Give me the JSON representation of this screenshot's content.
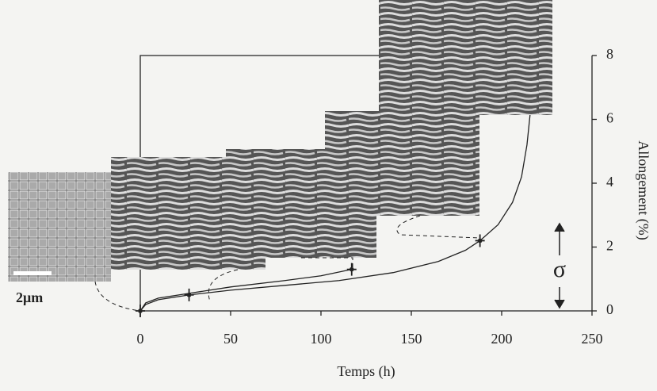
{
  "chart_data": {
    "type": "line",
    "x_label": "Temps (h)",
    "y_label": "Allongement (%)",
    "annotations": [
      "2μm",
      "σ"
    ],
    "series": [
      {
        "color": "#222222",
        "x": [
          0,
          3,
          10,
          27,
          50,
          80,
          110,
          140,
          165,
          180,
          188,
          198,
          206,
          211,
          214,
          216,
          218
        ],
        "values": [
          0,
          0.2,
          0.35,
          0.5,
          0.65,
          0.8,
          0.95,
          1.2,
          1.55,
          1.9,
          2.2,
          2.7,
          3.4,
          4.2,
          5.2,
          6.3,
          7.6
        ]
      },
      {
        "color": "#222222",
        "x": [
          0,
          3,
          10,
          27,
          50,
          80,
          100,
          117
        ],
        "values": [
          0,
          0.25,
          0.4,
          0.55,
          0.75,
          0.95,
          1.1,
          1.3
        ]
      }
    ],
    "points": {
      "color": "#222222",
      "x": [
        0,
        27,
        117,
        188,
        217
      ],
      "values": [
        0,
        0.5,
        1.3,
        2.2,
        7.4
      ]
    },
    "xlim": [
      0,
      250
    ],
    "xticks": [
      0,
      50,
      100,
      150,
      200,
      250
    ],
    "ylim": [
      0,
      8
    ],
    "yticks": [
      0,
      2,
      4,
      6,
      8
    ]
  }
}
